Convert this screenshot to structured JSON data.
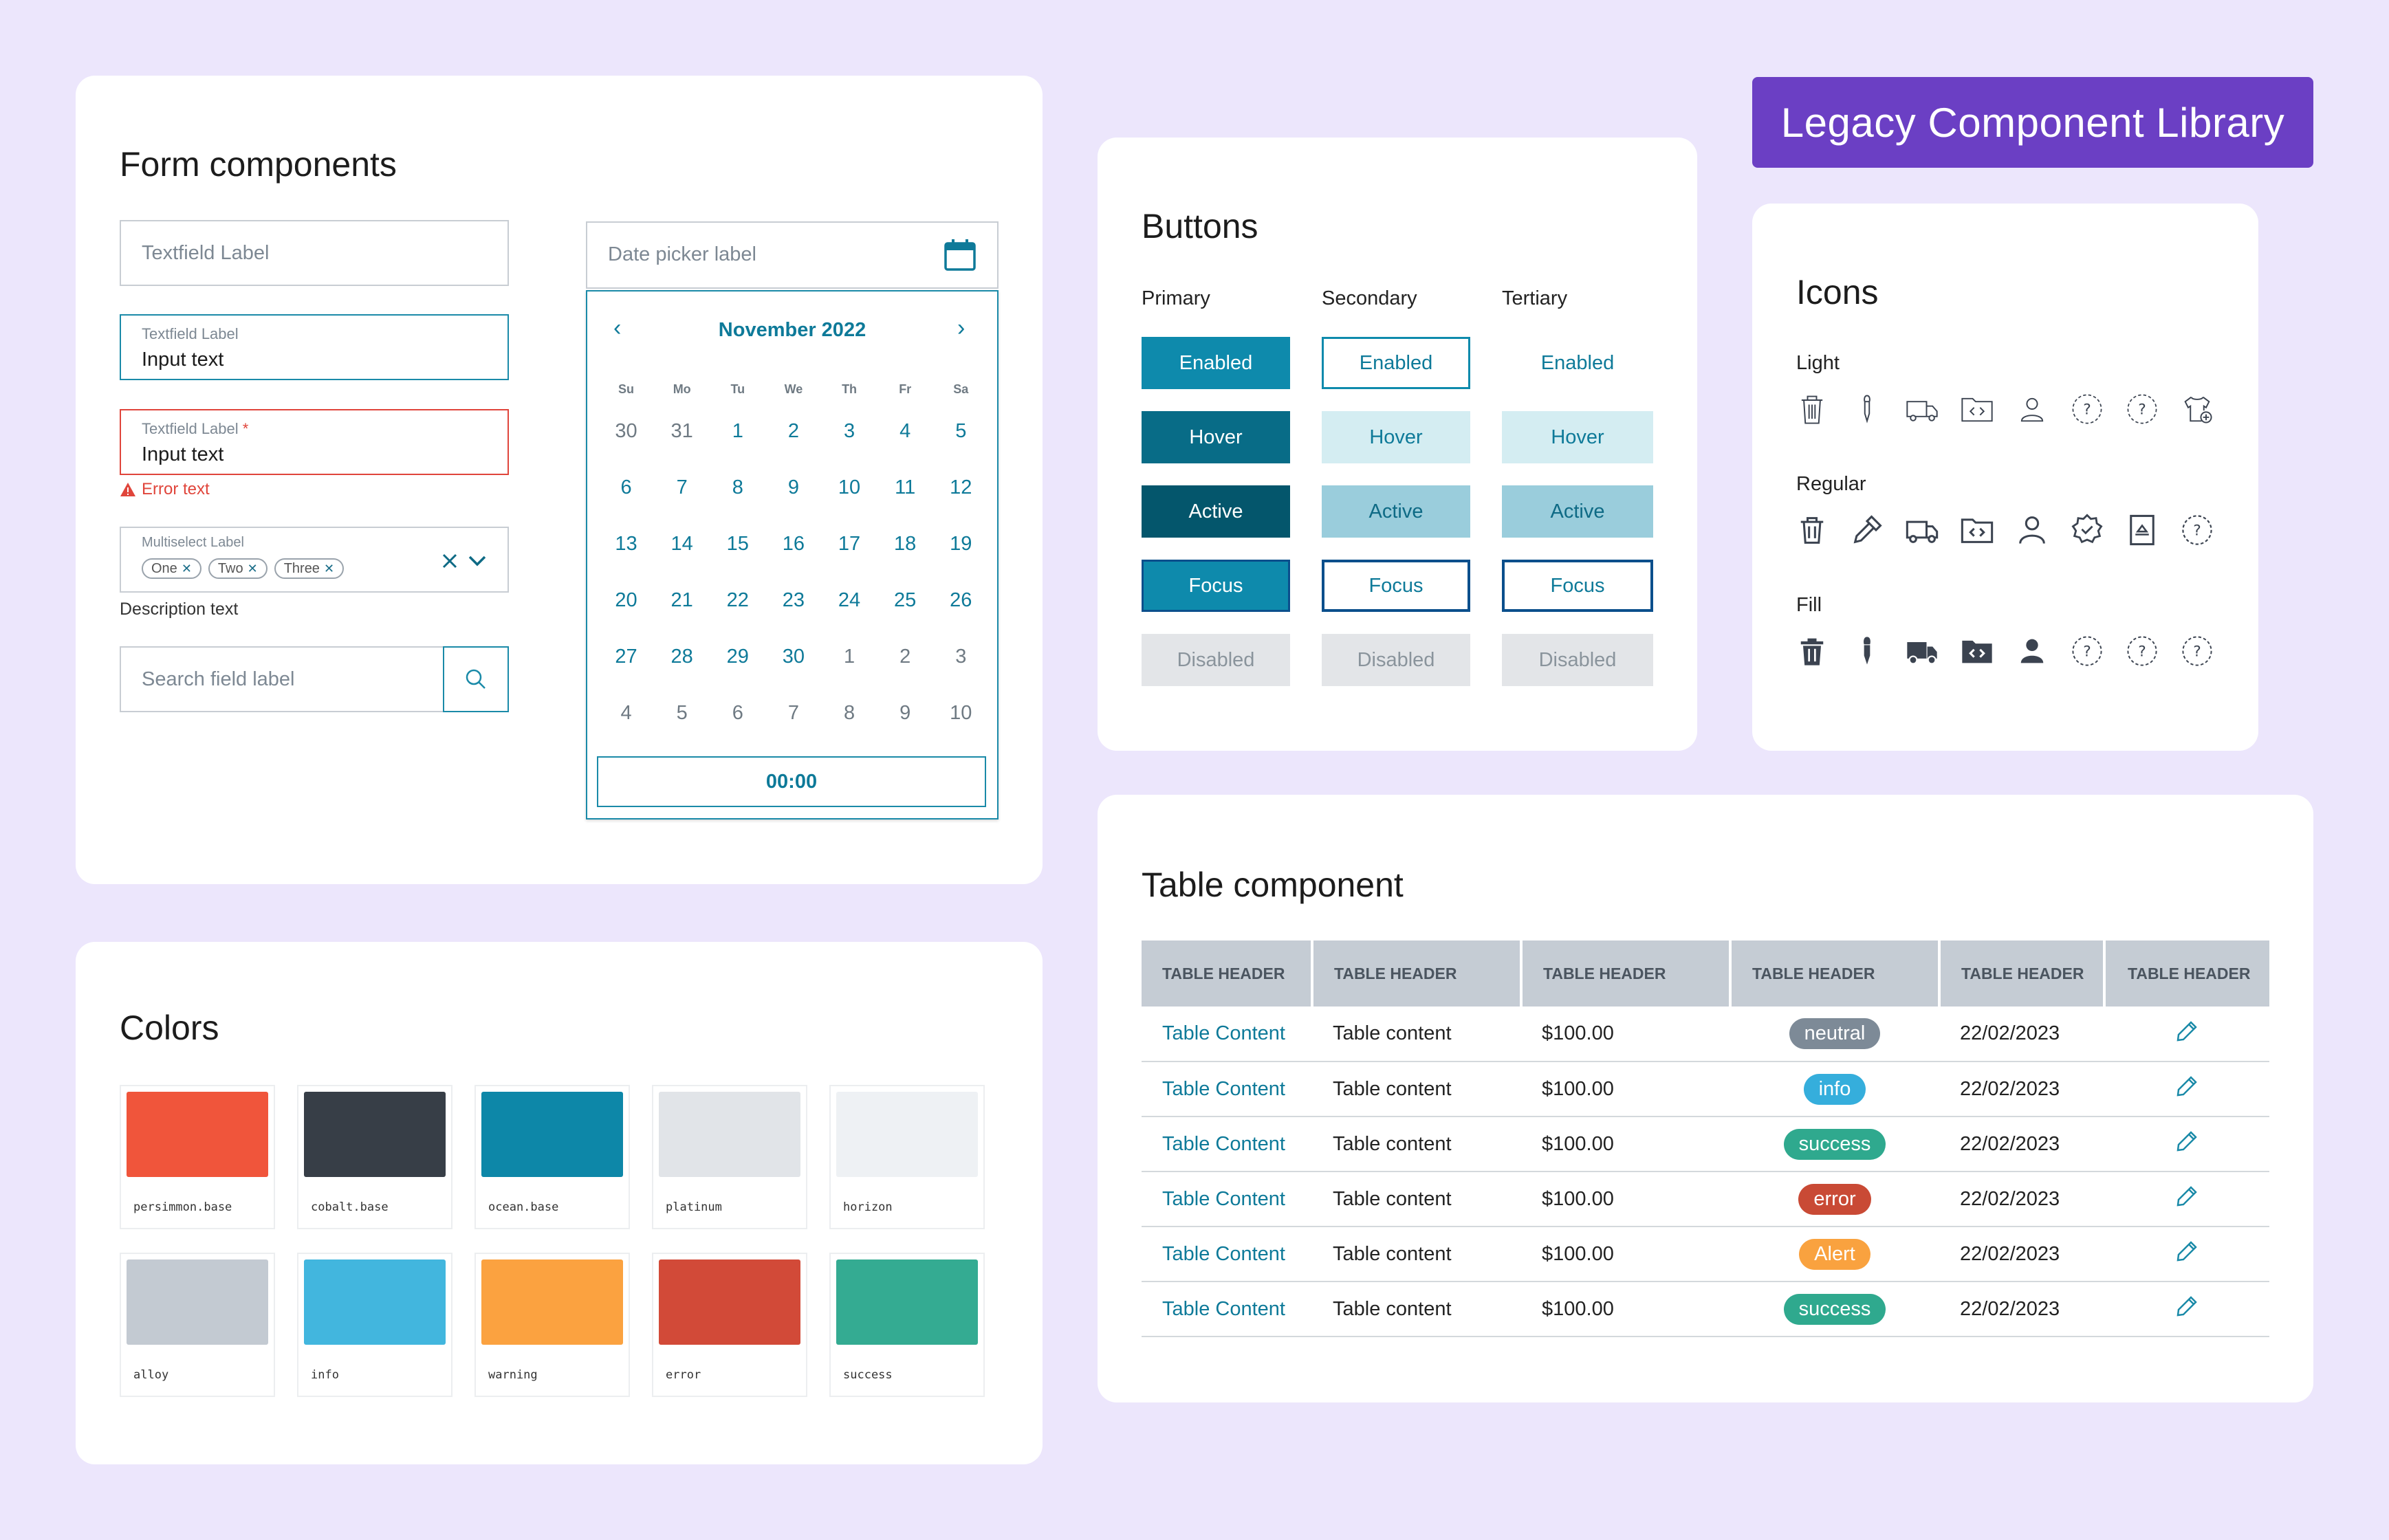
{
  "header": {
    "title": "Legacy Component Library"
  },
  "form": {
    "title": "Form components",
    "textfield1": {
      "label": "Textfield Label"
    },
    "textfield2": {
      "label": "Textfield Label",
      "value": "Input text"
    },
    "textfield3": {
      "label": "Textfield Label",
      "required": "*",
      "value": "Input text",
      "error": "Error text"
    },
    "multiselect": {
      "label": "Multiselect Label",
      "chips": [
        "One",
        "Two",
        "Three"
      ],
      "description": "Description text"
    },
    "search": {
      "placeholder": "Search field label"
    },
    "datepicker": {
      "label": "Date picker label",
      "month": "November 2022",
      "weekdays": [
        "Su",
        "Mo",
        "Tu",
        "We",
        "Th",
        "Fr",
        "Sa"
      ],
      "weeks": [
        [
          "30",
          "31",
          "1",
          "2",
          "3",
          "4",
          "5"
        ],
        [
          "6",
          "7",
          "8",
          "9",
          "10",
          "11",
          "12"
        ],
        [
          "13",
          "14",
          "15",
          "16",
          "17",
          "18",
          "19"
        ],
        [
          "20",
          "21",
          "22",
          "23",
          "24",
          "25",
          "26"
        ],
        [
          "27",
          "28",
          "29",
          "30",
          "1",
          "2",
          "3"
        ],
        [
          "4",
          "5",
          "6",
          "7",
          "8",
          "9",
          "10"
        ]
      ],
      "time": "00:00"
    }
  },
  "buttons": {
    "title": "Buttons",
    "columns": [
      "Primary",
      "Secondary",
      "Tertiary"
    ],
    "states": [
      "Enabled",
      "Hover",
      "Active",
      "Focus",
      "Disabled"
    ]
  },
  "icons": {
    "title": "Icons",
    "rows": [
      {
        "label": "Light",
        "icons": [
          "trash-icon",
          "pipette-icon",
          "truck-icon",
          "code-folder-icon",
          "user-icon",
          "help-icon",
          "help-icon",
          "shirt-add-icon"
        ]
      },
      {
        "label": "Regular",
        "icons": [
          "trash-icon",
          "pipette-icon",
          "truck-icon",
          "code-folder-icon",
          "user-icon",
          "badge-icon",
          "document-icon",
          "help-icon"
        ]
      },
      {
        "label": "Fill",
        "icons": [
          "trash-icon",
          "pipette-icon",
          "truck-icon",
          "code-folder-icon",
          "user-icon",
          "help-icon",
          "help-icon",
          "help-icon"
        ]
      }
    ]
  },
  "colors": {
    "title": "Colors",
    "swatches": [
      {
        "name": "persimmon.base",
        "hex": "#f0553b"
      },
      {
        "name": "cobalt.base",
        "hex": "#373e47"
      },
      {
        "name": "ocean.base",
        "hex": "#0d87a8"
      },
      {
        "name": "platinum",
        "hex": "#e1e4e8"
      },
      {
        "name": "horizon",
        "hex": "#eef1f4"
      },
      {
        "name": "alloy",
        "hex": "#c3cad2"
      },
      {
        "name": "info",
        "hex": "#42b6de"
      },
      {
        "name": "warning",
        "hex": "#fba240"
      },
      {
        "name": "error",
        "hex": "#d24a38"
      },
      {
        "name": "success",
        "hex": "#34ab92"
      }
    ]
  },
  "table": {
    "title": "Table component",
    "headers": [
      "TABLE HEADER",
      "TABLE HEADER",
      "TABLE HEADER",
      "TABLE HEADER",
      "TABLE HEADER",
      "TABLE HEADER"
    ],
    "rows": [
      {
        "c1": "Table Content",
        "c2": "Table content",
        "c3": "$100.00",
        "badge": "neutral",
        "badge_color": "#7d8a97",
        "date": "22/02/2023"
      },
      {
        "c1": "Table Content",
        "c2": "Table content",
        "c3": "$100.00",
        "badge": "info",
        "badge_color": "#35aedc",
        "date": "22/02/2023"
      },
      {
        "c1": "Table Content",
        "c2": "Table content",
        "c3": "$100.00",
        "badge": "success",
        "badge_color": "#2fa98e",
        "date": "22/02/2023"
      },
      {
        "c1": "Table Content",
        "c2": "Table content",
        "c3": "$100.00",
        "badge": "error",
        "badge_color": "#c94a35",
        "date": "22/02/2023"
      },
      {
        "c1": "Table Content",
        "c2": "Table content",
        "c3": "$100.00",
        "badge": "Alert",
        "badge_color": "#f9a23f",
        "date": "22/02/2023"
      },
      {
        "c1": "Table Content",
        "c2": "Table content",
        "c3": "$100.00",
        "badge": "success",
        "badge_color": "#2fa98e",
        "date": "22/02/2023"
      }
    ]
  }
}
